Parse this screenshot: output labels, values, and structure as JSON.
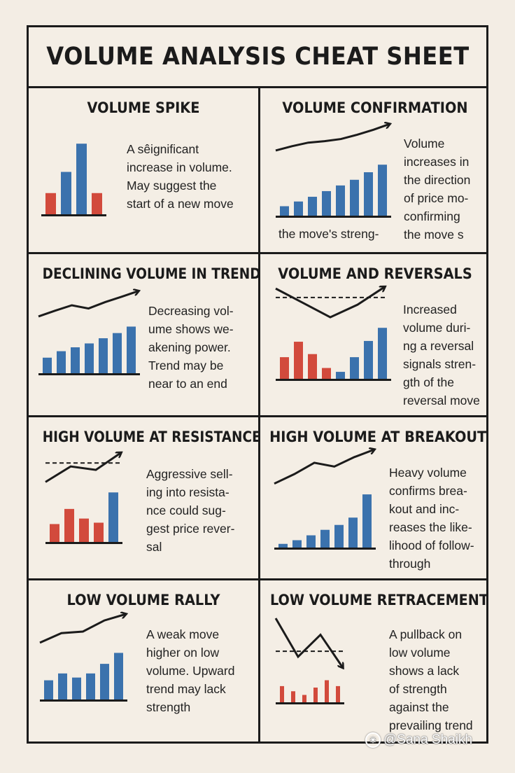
{
  "title": "VOLUME ANALYSIS CHEAT SHEET",
  "colors": {
    "up": "#3b72ad",
    "down": "#d24a3c",
    "ink": "#1b1b1b",
    "background": "#f3ede4"
  },
  "cells": [
    {
      "title": "VOLUME SPIKE",
      "desc": [
        "A sêignificant",
        "increase in volume.",
        "May suggest the",
        "start of a new move"
      ],
      "chart_data": {
        "type": "bar",
        "values": [
          3,
          6,
          10,
          3
        ],
        "colors": [
          "down",
          "up",
          "up",
          "down"
        ]
      }
    },
    {
      "title": "VOLUME CONFIRMATION",
      "desc": [
        "Volume",
        "increases in",
        "the direction",
        "of price mo-",
        "confirming",
        "the move s"
      ],
      "caption": "the move's streng-",
      "chart_data": {
        "type": "bar",
        "values": [
          1,
          1.5,
          2,
          2.6,
          3.2,
          3.8,
          4.6,
          5.4
        ],
        "colors": [
          "up",
          "up",
          "up",
          "up",
          "up",
          "up",
          "up",
          "up"
        ],
        "price": [
          2,
          3.2,
          4.2,
          4.6,
          5.2,
          6.4,
          7.8,
          9.4
        ]
      }
    },
    {
      "title": "DECLINING VOLUME IN TREND",
      "desc": [
        "Decreasing vol-",
        "ume shows we-",
        "akening power.",
        "Trend may be",
        "near to an end"
      ],
      "chart_data": {
        "type": "bar",
        "values": [
          1.2,
          1.7,
          2,
          2.3,
          2.7,
          3.1,
          3.6
        ],
        "colors": [
          "up",
          "up",
          "up",
          "up",
          "up",
          "up",
          "up"
        ],
        "price": [
          1,
          2.8,
          4.5,
          3.5,
          5.5,
          7.2,
          9
        ]
      }
    },
    {
      "title": "VOLUME AND REVERSALS",
      "desc": [
        "Increased",
        "volume duri-",
        "ng a reversal",
        "signals stren-",
        "gth of the",
        "reversal move"
      ],
      "chart_data": {
        "type": "bar",
        "values": [
          2.8,
          4.8,
          3.2,
          1.4,
          0.9,
          2.8,
          4.9,
          6.6
        ],
        "colors": [
          "down",
          "down",
          "down",
          "down",
          "up",
          "up",
          "up",
          "up"
        ],
        "price": [
          9,
          5,
          1,
          4.5,
          9.5
        ],
        "level": 6.5
      }
    },
    {
      "title": "HIGH VOLUME AT RESISTANCE",
      "desc": [
        "Aggressive sell-",
        "ing into resista-",
        "nce could sug-",
        "gest price rever-",
        "sal"
      ],
      "chart_data": {
        "type": "bar",
        "values": [
          2.6,
          4.8,
          3.4,
          2.8,
          7.2
        ],
        "colors": [
          "down",
          "down",
          "down",
          "down",
          "up"
        ],
        "price": [
          1,
          5.5,
          4.5,
          9.5
        ],
        "level": 6.5
      }
    },
    {
      "title": "HIGH VOLUME AT BREAKOUT",
      "desc": [
        "Heavy volume",
        "confirms brea-",
        "kout and inc-",
        "reases the like-",
        "lihood of follow-",
        "through"
      ],
      "chart_data": {
        "type": "bar",
        "values": [
          0.6,
          1.2,
          2,
          2.9,
          3.7,
          4.9,
          8.7
        ],
        "colors": [
          "up",
          "up",
          "up",
          "up",
          "up",
          "up",
          "up"
        ],
        "price": [
          1,
          3.5,
          6.5,
          5.5,
          8,
          10
        ]
      }
    },
    {
      "title": "LOW VOLUME RALLY",
      "desc": [
        "A weak move",
        "higher on low",
        "volume. Upward",
        "trend may lack",
        "strength"
      ],
      "chart_data": {
        "type": "bar",
        "values": [
          1.4,
          1.9,
          1.6,
          1.9,
          2.6,
          3.4
        ],
        "colors": [
          "up",
          "up",
          "up",
          "up",
          "up",
          "up"
        ],
        "price": [
          1,
          4,
          4.5,
          8,
          10
        ]
      }
    },
    {
      "title": "LOW VOLUME RETRACEMENT",
      "desc": [
        "A pullback on",
        "low volume",
        "shows a lack",
        "of strength",
        "against the",
        "prevailing trend"
      ],
      "chart_data": {
        "type": "bar",
        "values": [
          2.2,
          1.5,
          1,
          2,
          3,
          2.2
        ],
        "colors": [
          "down",
          "down",
          "down",
          "down",
          "down",
          "down"
        ],
        "price": [
          10,
          3,
          7,
          1
        ],
        "level": 4
      }
    }
  ],
  "watermark": "@Sana Shaikh"
}
